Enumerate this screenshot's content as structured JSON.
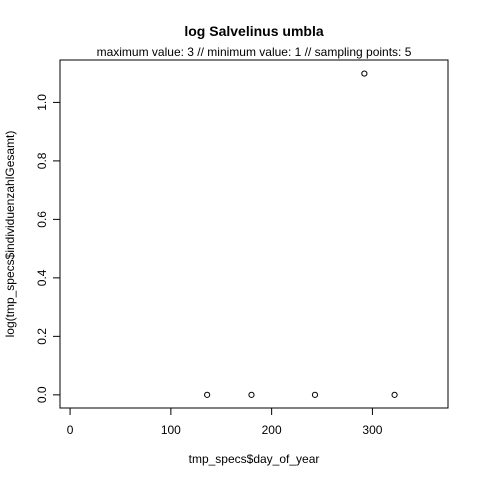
{
  "chart_data": {
    "type": "scatter",
    "title": "log Salvelinus umbla",
    "subtitle": "maximum value: 3  //  minimum value: 1  // sampling points: 5",
    "xlabel": "tmp_specs$day_of_year",
    "ylabel": "log(tmp_specs$individuenzahlGesamt)",
    "xlim": [
      -10,
      375
    ],
    "ylim": [
      -0.045,
      1.145
    ],
    "x_ticks": [
      0,
      100,
      200,
      300
    ],
    "y_ticks": [
      0.0,
      0.2,
      0.4,
      0.6,
      0.8,
      1.0
    ],
    "x_tick_labels": [
      "0",
      "100",
      "200",
      "300"
    ],
    "y_tick_labels": [
      "0.0",
      "0.2",
      "0.4",
      "0.6",
      "0.8",
      "1.0"
    ],
    "grid": false,
    "marker": "open-circle",
    "points": [
      {
        "x": 136,
        "y": 0.0
      },
      {
        "x": 180,
        "y": 0.0
      },
      {
        "x": 243,
        "y": 0.0
      },
      {
        "x": 292,
        "y": 1.0986
      },
      {
        "x": 322,
        "y": 0.0
      }
    ]
  }
}
